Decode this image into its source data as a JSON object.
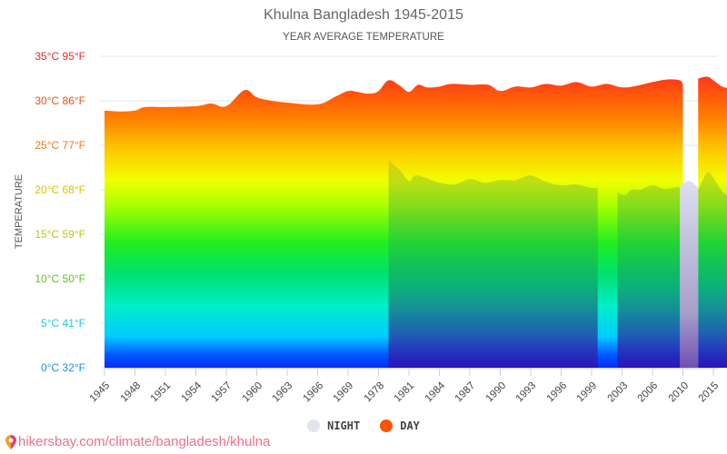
{
  "header": {
    "title": "Khulna Bangladesh 1945-2015",
    "subtitle": "YEAR AVERAGE TEMPERATURE"
  },
  "footer": {
    "link_text": "hikersbay.com/climate/bangladesh/khulna",
    "icon": "map-pin-icon"
  },
  "legend": [
    {
      "label": "NIGHT",
      "color": "#e2e5ee"
    },
    {
      "label": "DAY",
      "color": "#ff5500"
    }
  ],
  "chart_data": {
    "type": "area",
    "title": "Khulna Bangladesh 1945-2015",
    "subtitle": "YEAR AVERAGE TEMPERATURE",
    "xlabel": "",
    "ylabel": "TEMPERATURE",
    "ylim": [
      0,
      35
    ],
    "grid": true,
    "legend_position": "bottom",
    "y_ticks": [
      {
        "value": 0,
        "label": "0°C 32°F",
        "color": "#1e90e0"
      },
      {
        "value": 5,
        "label": "5°C 41°F",
        "color": "#20c8d8"
      },
      {
        "value": 10,
        "label": "10°C 50°F",
        "color": "#5ac81e"
      },
      {
        "value": 15,
        "label": "15°C 59°F",
        "color": "#b8c814"
      },
      {
        "value": 20,
        "label": "20°C 68°F",
        "color": "#e0c000"
      },
      {
        "value": 25,
        "label": "25°C 77°F",
        "color": "#f07818"
      },
      {
        "value": 30,
        "label": "30°C 86°F",
        "color": "#f05018"
      },
      {
        "value": 35,
        "label": "35°C 95°F",
        "color": "#f02828"
      }
    ],
    "x_ticks": [
      "1945",
      "1948",
      "1951",
      "1954",
      "1957",
      "1960",
      "1963",
      "1966",
      "1969",
      "1978",
      "1981",
      "1984",
      "1987",
      "1990",
      "1993",
      "1996",
      "1999",
      "2003",
      "2006",
      "2010",
      "2015"
    ],
    "series": [
      {
        "name": "DAY",
        "segments": [
          {
            "x": [
              0,
              0.5,
              1,
              1.33,
              2,
              3,
              3.5,
              4,
              4.6,
              5,
              5.5,
              6,
              7,
              7.6,
              8,
              8.3,
              8.7,
              9,
              9.33,
              9.7,
              10,
              10.3,
              10.6,
              11,
              11.4,
              12,
              12.6,
              13,
              13.5,
              14,
              14.5,
              15,
              15.5,
              16,
              16.5,
              17,
              17.5,
              18,
              18.5,
              18.9,
              19
            ],
            "y": [
              28.9,
              28.8,
              28.9,
              29.3,
              29.3,
              29.4,
              29.7,
              29.4,
              31.2,
              30.4,
              30.0,
              29.8,
              29.6,
              30.5,
              31.1,
              31.0,
              30.8,
              31.1,
              32.3,
              31.7,
              31.0,
              31.8,
              31.5,
              31.6,
              31.9,
              31.8,
              31.8,
              31.1,
              31.6,
              31.5,
              31.9,
              31.7,
              32.1,
              31.6,
              31.9,
              31.5,
              31.7,
              32.1,
              32.4,
              32.3,
              31.8
            ]
          },
          {
            "x": [
              19.5,
              19.8,
              20,
              20.3,
              20.7,
              21
            ],
            "y": [
              32.5,
              32.7,
              32.3,
              31.6,
              31.3,
              31.3
            ]
          }
        ]
      },
      {
        "name": "NIGHT",
        "segments": [
          {
            "x": [
              9.33,
              9.7,
              10,
              10.2,
              10.5,
              11,
              11.5,
              12,
              12.5,
              13,
              13.5,
              14,
              14.5,
              15,
              15.5,
              16,
              16.2
            ],
            "y": [
              23.3,
              22.2,
              21.0,
              21.6,
              21.4,
              20.8,
              20.6,
              21.2,
              20.8,
              21.1,
              21.1,
              21.6,
              20.9,
              20.5,
              20.6,
              20.2,
              20.2
            ]
          },
          {
            "x": [
              16.85,
              17.1,
              17.3,
              17.6,
              18,
              18.4,
              18.8,
              18.9
            ],
            "y": [
              19.7,
              19.4,
              20.0,
              20.0,
              20.5,
              20.1,
              20.3,
              20.2
            ]
          },
          {
            "x": [
              18.9,
              19.2,
              19.5
            ],
            "y": [
              20.4,
              21.0,
              20.2
            ]
          },
          {
            "x": [
              19.5,
              19.8,
              20,
              20.3,
              20.6,
              21
            ],
            "y": [
              20.0,
              21.9,
              21.3,
              19.8,
              19.1,
              18.9
            ]
          }
        ]
      }
    ]
  }
}
